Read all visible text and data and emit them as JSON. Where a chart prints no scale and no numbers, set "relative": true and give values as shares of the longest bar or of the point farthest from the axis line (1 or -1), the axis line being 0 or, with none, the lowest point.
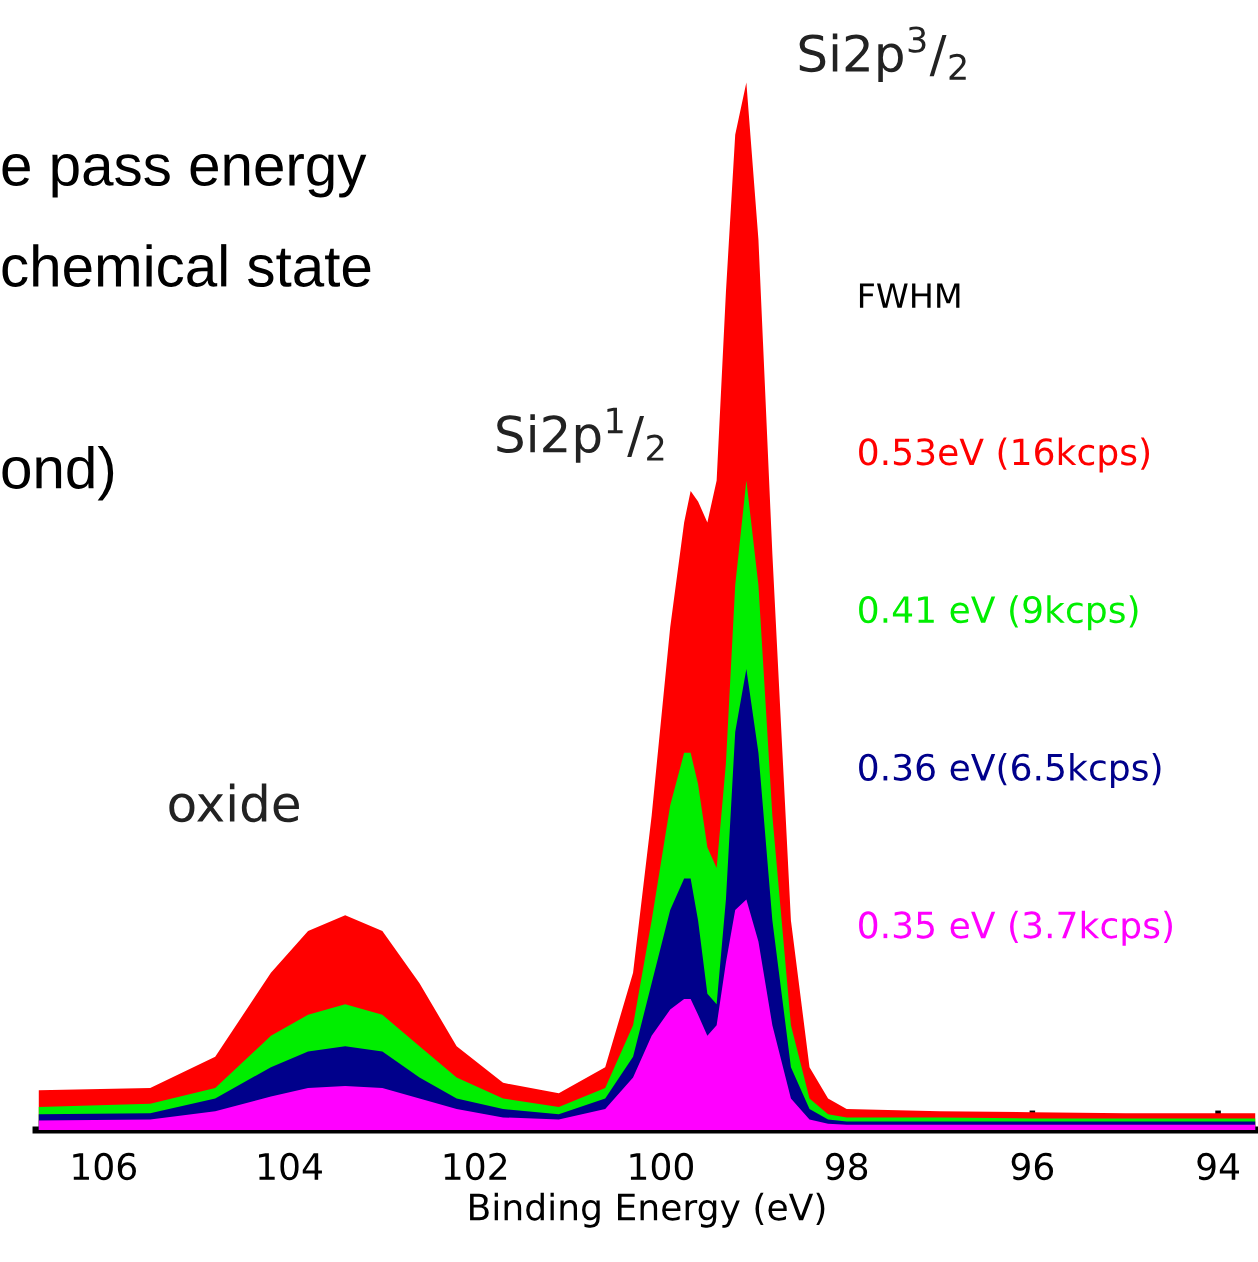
{
  "chart_data": {
    "type": "area",
    "relative": true,
    "xlabel": "Binding Energy (eV)",
    "legend_title": "FWHM",
    "legend": "right",
    "xlim": [
      106.73,
      93.57
    ],
    "xticks": [
      106,
      104,
      102,
      100,
      98,
      96,
      94
    ],
    "x": [
      106.7,
      105.5,
      104.8,
      104.2,
      103.8,
      103.4,
      103.0,
      102.6,
      102.2,
      101.7,
      101.1,
      100.6,
      100.3,
      100.1,
      99.9,
      99.75,
      99.68,
      99.6,
      99.5,
      99.4,
      99.3,
      99.2,
      99.08,
      98.95,
      98.8,
      98.6,
      98.4,
      98.2,
      98.0,
      97,
      96,
      95,
      94,
      93.6
    ],
    "series": [
      {
        "name": "0.53eV (16kcps)",
        "color": "#ff0000",
        "values": [
          0.038,
          0.04,
          0.07,
          0.15,
          0.19,
          0.205,
          0.19,
          0.14,
          0.08,
          0.045,
          0.035,
          0.06,
          0.15,
          0.3,
          0.48,
          0.58,
          0.61,
          0.6,
          0.58,
          0.62,
          0.8,
          0.95,
          1.0,
          0.85,
          0.55,
          0.2,
          0.06,
          0.03,
          0.02,
          0.018,
          0.017,
          0.016,
          0.016,
          0.016
        ]
      },
      {
        "name": "0.41 eV (9kcps)",
        "color": "#00ee00",
        "values": [
          0.022,
          0.025,
          0.04,
          0.09,
          0.11,
          0.12,
          0.11,
          0.08,
          0.05,
          0.03,
          0.022,
          0.04,
          0.1,
          0.2,
          0.31,
          0.36,
          0.36,
          0.33,
          0.27,
          0.25,
          0.35,
          0.52,
          0.62,
          0.52,
          0.3,
          0.1,
          0.03,
          0.015,
          0.012,
          0.012,
          0.011,
          0.011,
          0.011,
          0.011
        ]
      },
      {
        "name": "0.36 eV(6.5kcps)",
        "color": "#00008b",
        "values": [
          0.015,
          0.016,
          0.03,
          0.06,
          0.075,
          0.08,
          0.075,
          0.05,
          0.03,
          0.02,
          0.015,
          0.03,
          0.07,
          0.14,
          0.21,
          0.24,
          0.24,
          0.2,
          0.13,
          0.12,
          0.22,
          0.38,
          0.44,
          0.36,
          0.2,
          0.06,
          0.02,
          0.01,
          0.008,
          0.008,
          0.008,
          0.008,
          0.008,
          0.008
        ]
      },
      {
        "name": "0.35 eV (3.7kcps)",
        "color": "#ff00ff",
        "values": [
          0.009,
          0.01,
          0.018,
          0.032,
          0.04,
          0.042,
          0.04,
          0.03,
          0.02,
          0.012,
          0.01,
          0.02,
          0.05,
          0.09,
          0.115,
          0.125,
          0.125,
          0.11,
          0.09,
          0.1,
          0.16,
          0.21,
          0.22,
          0.18,
          0.1,
          0.03,
          0.01,
          0.006,
          0.005,
          0.005,
          0.005,
          0.005,
          0.005,
          0.005
        ]
      }
    ],
    "annotations": [
      {
        "text": "Si2p$^{3}$/$_{2}$",
        "x": 99.08,
        "y": 1.0
      },
      {
        "text": "Si2p$^{1}$/$_{2}$",
        "x": 99.68,
        "y": 0.61
      },
      {
        "text": "oxide",
        "x": 103.4,
        "y": 0.205
      },
      "e pass energy",
      "chemical state",
      "ond)"
    ]
  }
}
